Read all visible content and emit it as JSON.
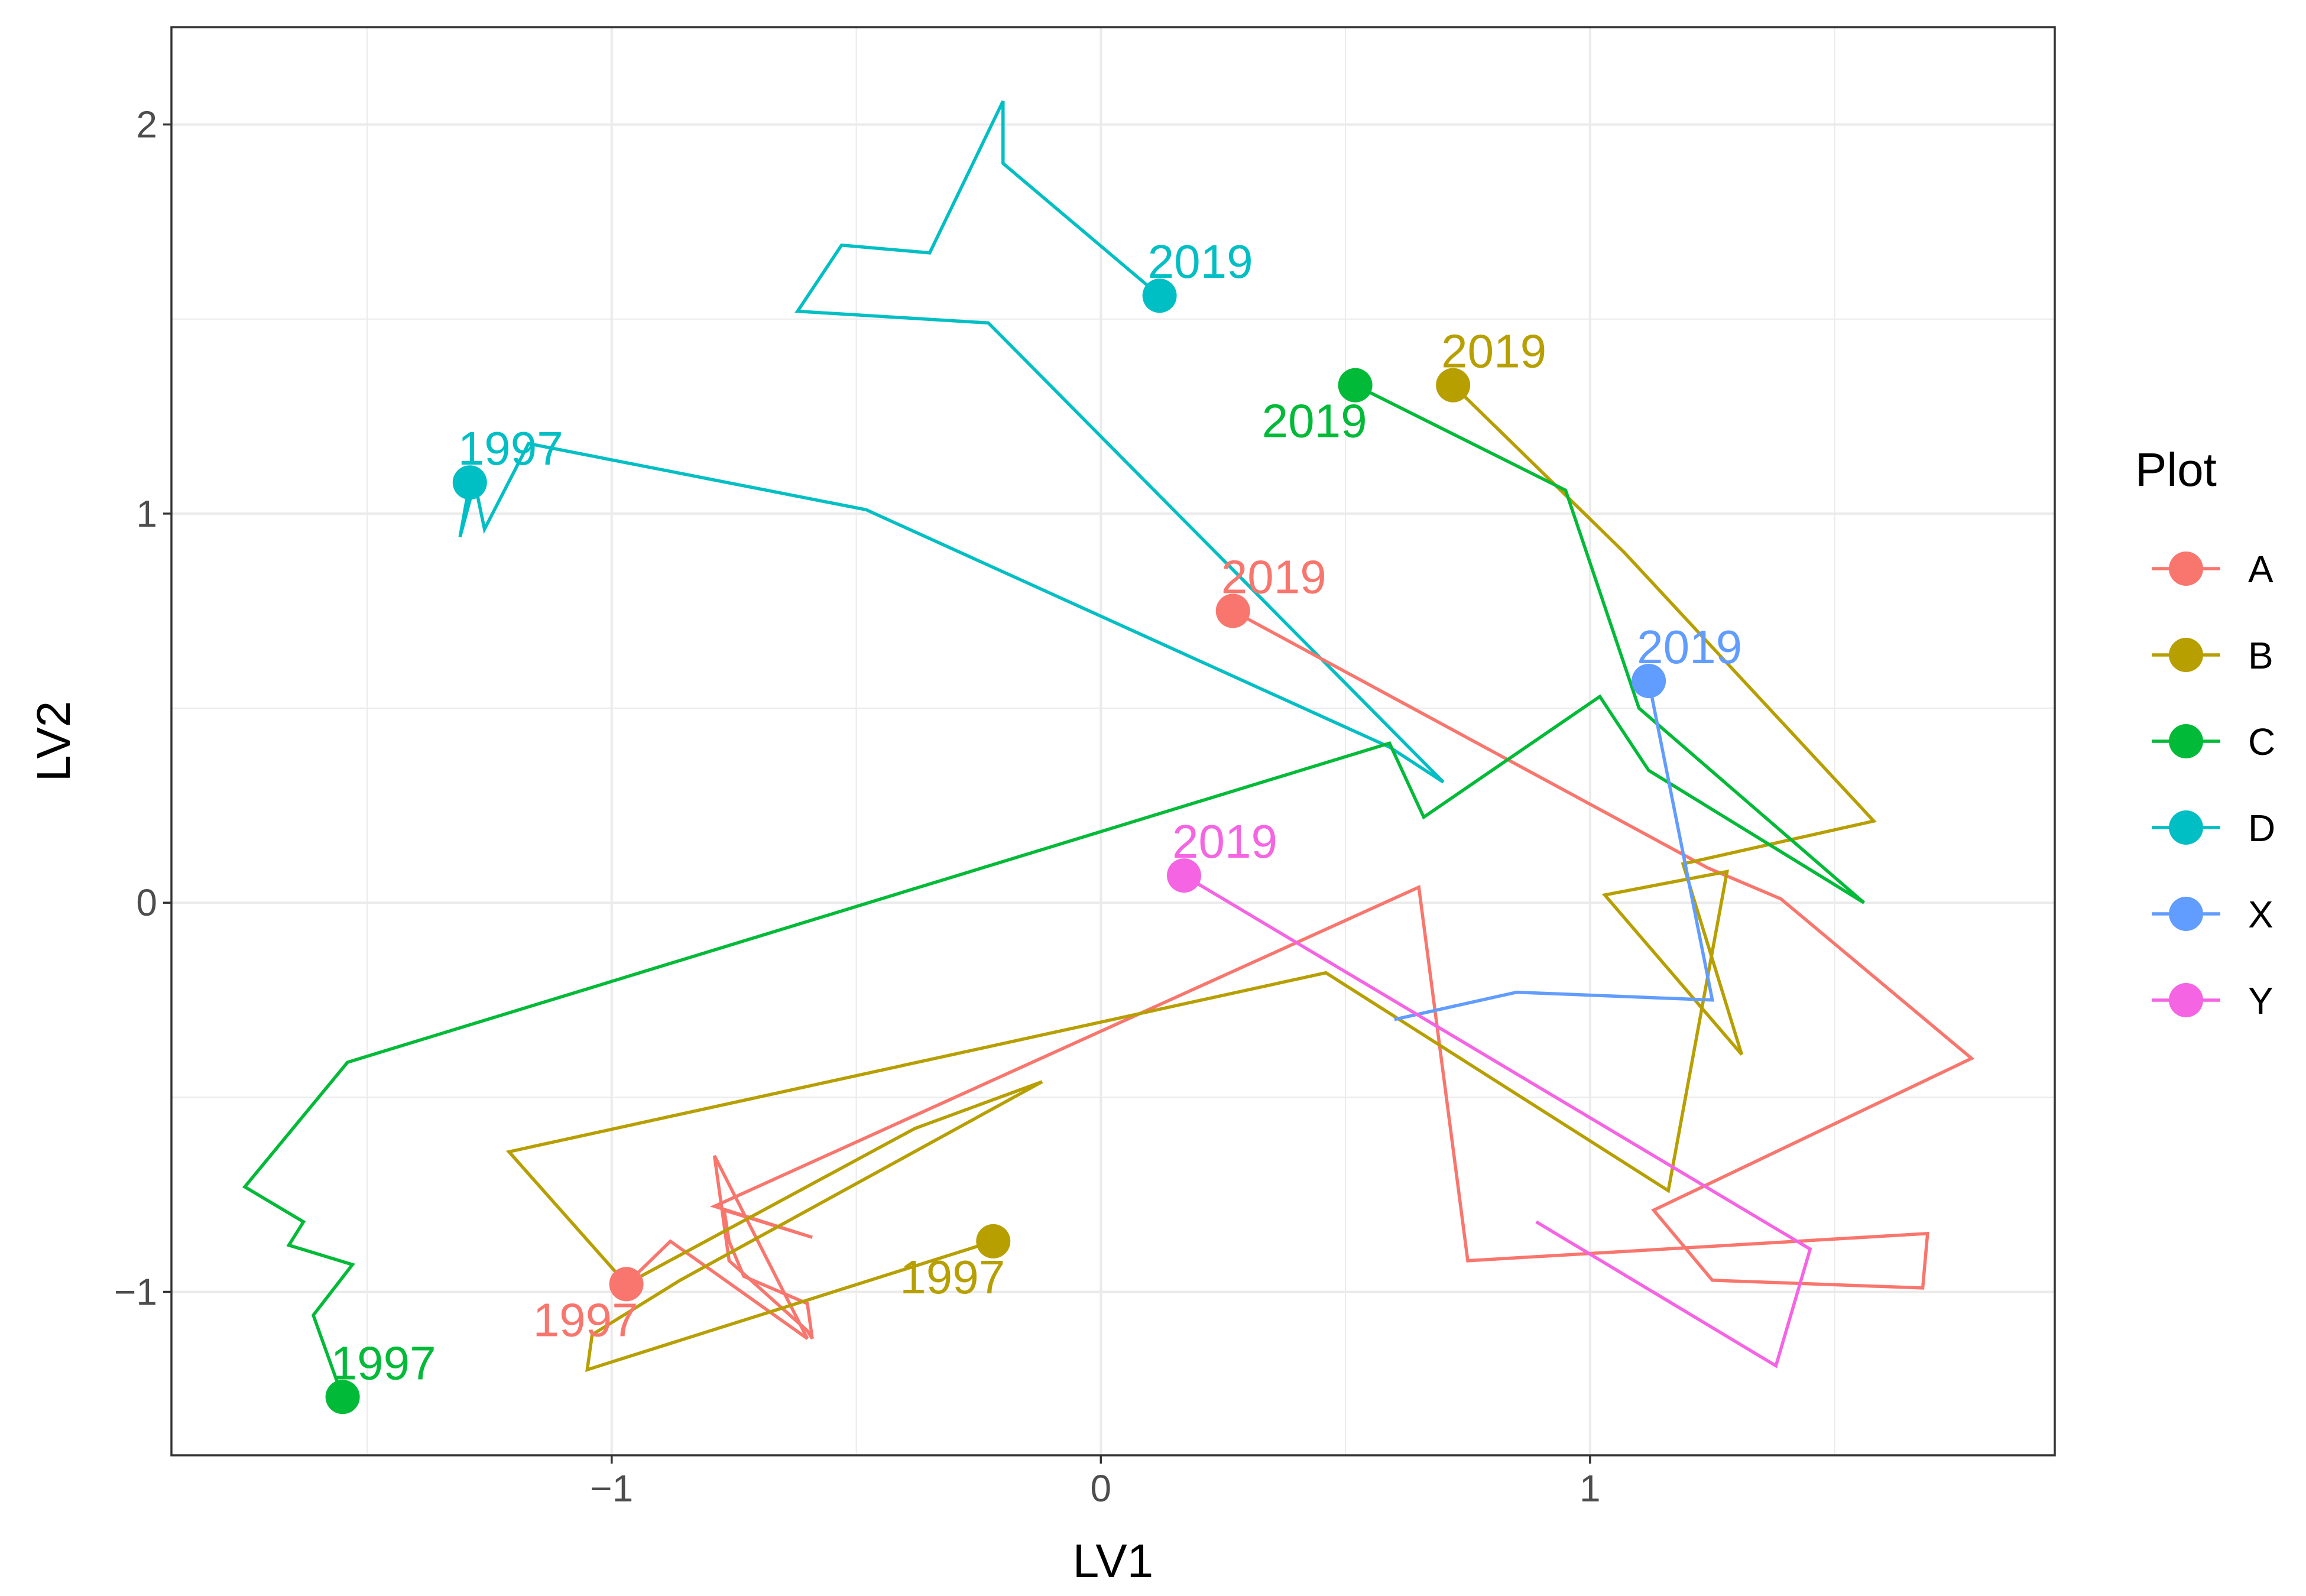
{
  "chart_data": {
    "type": "line",
    "title": "",
    "xlabel": "LV1",
    "ylabel": "LV2",
    "xlim": [
      -1.9,
      1.95
    ],
    "ylim": [
      -1.42,
      2.25
    ],
    "x_ticks": [
      -1,
      0,
      1
    ],
    "x_tick_labels": [
      "−1",
      "0",
      "1"
    ],
    "y_ticks": [
      -1,
      0,
      1,
      2
    ],
    "y_tick_labels": [
      "−1",
      "0",
      "1",
      "2"
    ],
    "grid": true,
    "legend": {
      "title": "Plot",
      "position": "right"
    },
    "series": [
      {
        "name": "A",
        "color": "#F8766D",
        "path": [
          [
            -0.97,
            -0.98
          ],
          [
            -0.88,
            -0.87
          ],
          [
            -0.6,
            -1.12
          ],
          [
            -0.79,
            -0.65
          ],
          [
            -0.76,
            -0.92
          ],
          [
            -0.6,
            -1.1
          ],
          [
            -0.59,
            -1.12
          ],
          [
            -0.6,
            -1.03
          ],
          [
            -0.73,
            -0.96
          ],
          [
            -0.76,
            -0.87
          ],
          [
            -0.77,
            -0.79
          ],
          [
            -0.59,
            -0.86
          ],
          [
            -0.79,
            -0.78
          ],
          [
            0.65,
            0.04
          ],
          [
            0.75,
            -0.92
          ],
          [
            1.69,
            -0.85
          ],
          [
            1.68,
            -0.99
          ],
          [
            1.25,
            -0.97
          ],
          [
            1.13,
            -0.79
          ],
          [
            1.78,
            -0.4
          ],
          [
            1.39,
            0.01
          ],
          [
            1.24,
            0.09
          ],
          [
            0.27,
            0.75
          ]
        ],
        "labels": [
          {
            "text": "1997",
            "x": -0.97,
            "y": -0.98,
            "pos": "below-left"
          },
          {
            "text": "2019",
            "x": 0.27,
            "y": 0.75,
            "pos": "above-right"
          }
        ]
      },
      {
        "name": "B",
        "color": "#B79F00",
        "path": [
          [
            -0.22,
            -0.87
          ],
          [
            -1.05,
            -1.2
          ],
          [
            -1.04,
            -1.11
          ],
          [
            -0.86,
            -0.97
          ],
          [
            -0.12,
            -0.46
          ],
          [
            -0.38,
            -0.58
          ],
          [
            -0.97,
            -0.98
          ],
          [
            -1.21,
            -0.64
          ],
          [
            0.46,
            -0.18
          ],
          [
            1.16,
            -0.74
          ],
          [
            1.28,
            0.08
          ],
          [
            1.03,
            0.02
          ],
          [
            1.31,
            -0.39
          ],
          [
            1.19,
            0.1
          ],
          [
            1.58,
            0.21
          ],
          [
            1.07,
            0.9
          ],
          [
            0.72,
            1.33
          ]
        ],
        "labels": [
          {
            "text": "1997",
            "x": -0.22,
            "y": -0.87,
            "pos": "below-left"
          },
          {
            "text": "2019",
            "x": 0.72,
            "y": 1.33,
            "pos": "above-right"
          }
        ]
      },
      {
        "name": "C",
        "color": "#00BA38",
        "path": [
          [
            -1.55,
            -1.27
          ],
          [
            -1.61,
            -1.06
          ],
          [
            -1.53,
            -0.93
          ],
          [
            -1.66,
            -0.88
          ],
          [
            -1.63,
            -0.82
          ],
          [
            -1.75,
            -0.73
          ],
          [
            -1.54,
            -0.41
          ],
          [
            0.59,
            0.41
          ],
          [
            0.66,
            0.22
          ],
          [
            1.02,
            0.53
          ],
          [
            1.12,
            0.34
          ],
          [
            1.56,
            0.0
          ],
          [
            1.1,
            0.5
          ],
          [
            0.95,
            1.06
          ],
          [
            0.52,
            1.33
          ]
        ],
        "labels": [
          {
            "text": "1997",
            "x": -1.55,
            "y": -1.27,
            "pos": "above-right"
          },
          {
            "text": "2019",
            "x": 0.52,
            "y": 1.33,
            "pos": "below-left"
          }
        ]
      },
      {
        "name": "D",
        "color": "#00BFC4",
        "path": [
          [
            -1.29,
            1.08
          ],
          [
            -1.31,
            0.94
          ],
          [
            -1.28,
            1.08
          ],
          [
            -1.26,
            0.96
          ],
          [
            -1.17,
            1.18
          ],
          [
            -0.48,
            1.01
          ],
          [
            0.59,
            0.4
          ],
          [
            0.7,
            0.31
          ],
          [
            -0.23,
            1.49
          ],
          [
            -0.62,
            1.52
          ],
          [
            -0.53,
            1.69
          ],
          [
            -0.35,
            1.67
          ],
          [
            -0.2,
            2.06
          ],
          [
            -0.2,
            1.9
          ],
          [
            0.12,
            1.56
          ]
        ],
        "labels": [
          {
            "text": "1997",
            "x": -1.29,
            "y": 1.08,
            "pos": "above-right"
          },
          {
            "text": "2019",
            "x": 0.12,
            "y": 1.56,
            "pos": "above-right"
          }
        ]
      },
      {
        "name": "X",
        "color": "#619CFF",
        "path": [
          [
            0.6,
            -0.3
          ],
          [
            0.85,
            -0.23
          ],
          [
            1.25,
            -0.25
          ],
          [
            1.12,
            0.57
          ]
        ],
        "labels": [
          {
            "text": "2019",
            "x": 1.12,
            "y": 0.57,
            "pos": "above-right"
          }
        ]
      },
      {
        "name": "Y",
        "color": "#F564E3",
        "path": [
          [
            0.89,
            -0.82
          ],
          [
            1.38,
            -1.19
          ],
          [
            1.45,
            -0.89
          ],
          [
            0.17,
            0.07
          ]
        ],
        "labels": [
          {
            "text": "2019",
            "x": 0.17,
            "y": 0.07,
            "pos": "above-right"
          }
        ]
      }
    ]
  }
}
